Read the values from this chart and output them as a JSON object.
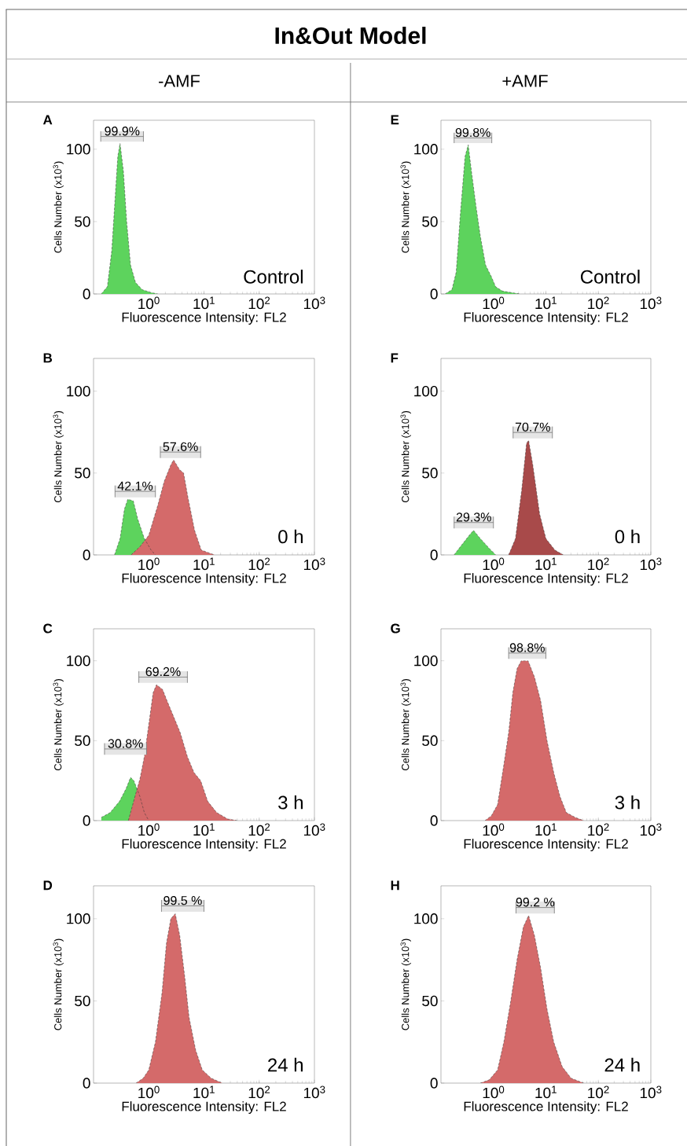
{
  "chart_data": [
    {
      "type": "other",
      "title": "In&Out Model",
      "annotations": [
        "-AMF",
        "+AMF"
      ]
    },
    {
      "type": "area",
      "title": "A",
      "xlabel": "Fluorescence Intensity: FL2",
      "ylabel": "Cells Number  (x10$^{3}$)",
      "log": "x",
      "xlim": [
        0.1,
        1000
      ],
      "ylim": [
        0,
        120
      ],
      "xticks": [
        {
          "value": 1,
          "label": "10$^{0}$"
        },
        {
          "value": 10,
          "label": "10$^{1}$"
        },
        {
          "value": 100,
          "label": "10$^{2}$"
        },
        {
          "value": 1000,
          "label": "10$^{3}$"
        }
      ],
      "yticks": [
        0,
        50,
        100
      ],
      "annotations": [
        "Control"
      ],
      "bands": [
        {
          "axis": "x",
          "from": 0.135,
          "to": 0.8,
          "label": "99.9%"
        }
      ],
      "series": [
        {
          "color": "#5dd35d",
          "x": [
            0.138,
            0.178,
            0.214,
            0.24,
            0.275,
            0.302,
            0.347,
            0.398,
            0.468,
            0.575,
            0.759,
            1.1,
            1.45
          ],
          "values": [
            0,
            5,
            30,
            60,
            95,
            104,
            85,
            50,
            20,
            8,
            3,
            1,
            0
          ]
        }
      ]
    },
    {
      "type": "area",
      "title": "E",
      "xlabel": "Fluorescence Intensity: FL2",
      "ylabel": "Cells Number  (x10$^{3}$)",
      "log": "x",
      "xlim": [
        0.1,
        1000
      ],
      "ylim": [
        0,
        120
      ],
      "xticks": [
        {
          "value": 1,
          "label": "10$^{0}$"
        },
        {
          "value": 10,
          "label": "10$^{1}$"
        },
        {
          "value": 100,
          "label": "10$^{2}$"
        },
        {
          "value": 1000,
          "label": "10$^{3}$"
        }
      ],
      "yticks": [
        0,
        50,
        100
      ],
      "annotations": [
        "Control"
      ],
      "bands": [
        {
          "axis": "x",
          "from": 0.178,
          "to": 0.93,
          "label": "99.8%"
        }
      ],
      "series": [
        {
          "color": "#5dd35d",
          "x": [
            0.12,
            0.162,
            0.195,
            0.234,
            0.288,
            0.331,
            0.38,
            0.468,
            0.562,
            0.708,
            0.912,
            1.1,
            1.48,
            3.16
          ],
          "values": [
            0,
            3,
            15,
            55,
            95,
            103,
            85,
            60,
            40,
            20,
            12,
            5,
            2,
            0
          ]
        }
      ]
    },
    {
      "type": "area",
      "title": "B",
      "xlabel": "Fluorescence Intensity: FL2",
      "ylabel": "Cells Number  (x10$^{3}$)",
      "log": "x",
      "xlim": [
        0.1,
        1000
      ],
      "ylim": [
        0,
        120
      ],
      "xticks": [
        {
          "value": 1,
          "label": "10$^{0}$"
        },
        {
          "value": 10,
          "label": "10$^{1}$"
        },
        {
          "value": 100,
          "label": "10$^{2}$"
        },
        {
          "value": 1000,
          "label": "10$^{3}$"
        }
      ],
      "yticks": [
        0,
        50,
        100
      ],
      "annotations": [
        "0 h"
      ],
      "bands": [
        {
          "axis": "x",
          "from": 0.245,
          "to": 1.32,
          "label": "42.1%"
        },
        {
          "axis": "x",
          "from": 1.62,
          "to": 8.71,
          "label": "57.6%"
        }
      ],
      "series": [
        {
          "color": "#5dd35d",
          "x": [
            0.24,
            0.302,
            0.363,
            0.417,
            0.525,
            0.631,
            0.832,
            1.1,
            1.32
          ],
          "values": [
            0,
            10,
            28,
            34,
            33,
            22,
            10,
            3,
            0
          ]
        },
        {
          "color": "#d46a6a",
          "x": [
            0.479,
            0.692,
            1,
            1.45,
            1.91,
            2.51,
            2.82,
            3.63,
            4.27,
            5.13,
            6.76,
            8.91,
            12.9,
            15.5
          ],
          "values": [
            0,
            5,
            12,
            30,
            45,
            55,
            58,
            52,
            50,
            35,
            15,
            3,
            1,
            0
          ]
        }
      ]
    },
    {
      "type": "area",
      "title": "F",
      "xlabel": "Fluorescence Intensity: FL2",
      "ylabel": "Cells Number  (x10$^{3}$)",
      "log": "x",
      "xlim": [
        0.1,
        1000
      ],
      "ylim": [
        0,
        120
      ],
      "xticks": [
        {
          "value": 1,
          "label": "10$^{0}$"
        },
        {
          "value": 10,
          "label": "10$^{1}$"
        },
        {
          "value": 100,
          "label": "10$^{2}$"
        },
        {
          "value": 1000,
          "label": "10$^{3}$"
        }
      ],
      "yticks": [
        0,
        50,
        100
      ],
      "annotations": [
        "0 h"
      ],
      "bands": [
        {
          "axis": "x",
          "from": 0.178,
          "to": 1,
          "label": "29.3%"
        },
        {
          "axis": "x",
          "from": 2.37,
          "to": 13.3,
          "label": "70.7%"
        }
      ],
      "series": [
        {
          "color": "#5dd35d",
          "x": [
            0.178,
            0.234,
            0.347,
            0.417,
            0.562,
            0.832,
            1.1
          ],
          "values": [
            0,
            5,
            12,
            15,
            10,
            4,
            0
          ]
        },
        {
          "color": "#a84a4a",
          "x": [
            1.95,
            2.63,
            3.47,
            4.27,
            4.68,
            5.62,
            7.59,
            10,
            14.8,
            21.4
          ],
          "values": [
            0,
            10,
            40,
            68,
            70,
            55,
            25,
            10,
            3,
            0
          ]
        }
      ]
    },
    {
      "type": "area",
      "title": "C",
      "xlabel": "Fluorescence Intensity: FL2",
      "ylabel": "Cells Number  (x10$^{3}$)",
      "log": "x",
      "xlim": [
        0.1,
        1000
      ],
      "ylim": [
        0,
        120
      ],
      "xticks": [
        {
          "value": 1,
          "label": "10$^{0}$"
        },
        {
          "value": 10,
          "label": "10$^{1}$"
        },
        {
          "value": 100,
          "label": "10$^{2}$"
        },
        {
          "value": 1000,
          "label": "10$^{3}$"
        }
      ],
      "yticks": [
        0,
        50,
        100
      ],
      "annotations": [
        "3 h"
      ],
      "bands": [
        {
          "axis": "x",
          "from": 0.661,
          "to": 5.01,
          "label": "69.2%"
        },
        {
          "axis": "x",
          "from": 0.158,
          "to": 0.912,
          "label": "30.8%"
        }
      ],
      "series": [
        {
          "color": "#5dd35d",
          "x": [
            0.138,
            0.2,
            0.295,
            0.389,
            0.468,
            0.537,
            0.692,
            0.832,
            1
          ],
          "values": [
            2,
            5,
            12,
            20,
            27,
            25,
            15,
            5,
            0
          ]
        },
        {
          "color": "#d46a6a",
          "x": [
            0.427,
            0.562,
            0.692,
            0.832,
            1,
            1.2,
            1.38,
            1.78,
            2.14,
            2.82,
            3.72,
            5.01,
            6.61,
            8.71,
            11.7,
            17,
            26.9,
            39.8
          ],
          "values": [
            0,
            15,
            26,
            40,
            60,
            80,
            85,
            82,
            75,
            65,
            55,
            40,
            30,
            25,
            12,
            5,
            1,
            0
          ]
        }
      ]
    },
    {
      "type": "area",
      "title": "G",
      "xlabel": "Fluorescence Intensity: FL2",
      "ylabel": "Cells Number  (x10$^{3}$)",
      "log": "x",
      "xlim": [
        0.1,
        1000
      ],
      "ylim": [
        0,
        120
      ],
      "xticks": [
        {
          "value": 1,
          "label": "10$^{0}$"
        },
        {
          "value": 10,
          "label": "10$^{1}$"
        },
        {
          "value": 100,
          "label": "10$^{2}$"
        },
        {
          "value": 1000,
          "label": "10$^{3}$"
        }
      ],
      "yticks": [
        0,
        50,
        100
      ],
      "annotations": [
        "3 h"
      ],
      "bands": [
        {
          "axis": "x",
          "from": 1.95,
          "to": 10,
          "label": "98.8%"
        }
      ],
      "series": [
        {
          "color": "#d46a6a",
          "x": [
            0.692,
            0.912,
            1.2,
            1.58,
            1.95,
            2.34,
            2.82,
            3.39,
            4.57,
            6.03,
            7.94,
            10.5,
            14.1,
            18.6,
            24.5,
            36.3,
            52.5
          ],
          "values": [
            0,
            3,
            10,
            35,
            55,
            80,
            95,
            100,
            100,
            90,
            75,
            50,
            30,
            15,
            5,
            2,
            0
          ]
        }
      ]
    },
    {
      "type": "area",
      "title": "D",
      "xlabel": "Fluorescence Intensity: FL2",
      "ylabel": "Cells Number  (x10$^{3}$)",
      "log": "x",
      "xlim": [
        0.1,
        1000
      ],
      "ylim": [
        0,
        120
      ],
      "xticks": [
        {
          "value": 1,
          "label": "10$^{0}$"
        },
        {
          "value": 10,
          "label": "10$^{1}$"
        },
        {
          "value": 100,
          "label": "10$^{2}$"
        },
        {
          "value": 1000,
          "label": "10$^{3}$"
        }
      ],
      "yticks": [
        0,
        50,
        100
      ],
      "annotations": [
        "24 h"
      ],
      "bands": [
        {
          "axis": "x",
          "from": 1.7,
          "to": 10,
          "label": "99.5 %"
        }
      ],
      "series": [
        {
          "color": "#d46a6a",
          "x": [
            0.589,
            0.794,
            1,
            1.32,
            1.74,
            2.09,
            2.51,
            3.02,
            3.63,
            4.47,
            5.37,
            7.08,
            9.33,
            13.5,
            21.4
          ],
          "values": [
            0,
            3,
            8,
            25,
            55,
            85,
            100,
            103,
            90,
            65,
            40,
            20,
            8,
            3,
            0
          ]
        }
      ]
    },
    {
      "type": "area",
      "title": "H",
      "xlabel": "Fluorescence Intensity: FL2",
      "ylabel": "Cells Number  (x10$^{3}$)",
      "log": "x",
      "xlim": [
        0.1,
        1000
      ],
      "ylim": [
        0,
        120
      ],
      "xticks": [
        {
          "value": 1,
          "label": "10$^{0}$"
        },
        {
          "value": 10,
          "label": "10$^{1}$"
        },
        {
          "value": 100,
          "label": "10$^{2}$"
        },
        {
          "value": 1000,
          "label": "10$^{3}$"
        }
      ],
      "yticks": [
        0,
        50,
        100
      ],
      "annotations": [
        "24 h"
      ],
      "bands": [
        {
          "axis": "x",
          "from": 2.69,
          "to": 14.5,
          "label": "99.2 %"
        }
      ],
      "series": [
        {
          "color": "#d46a6a",
          "x": [
            0.562,
            0.832,
            1.2,
            1.58,
            2.14,
            2.82,
            3.72,
            4.68,
            6.03,
            7.94,
            10.5,
            14.1,
            20.4,
            30.2,
            52.5
          ],
          "values": [
            0,
            2,
            8,
            25,
            50,
            75,
            95,
            102,
            90,
            70,
            45,
            25,
            10,
            3,
            0
          ]
        }
      ]
    }
  ]
}
